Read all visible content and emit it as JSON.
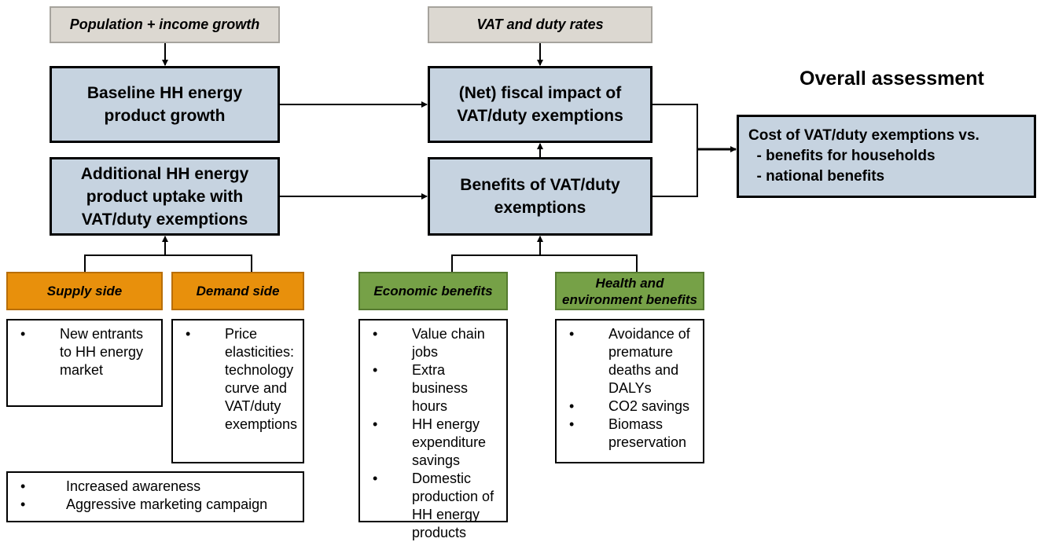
{
  "inputs": {
    "population": "Population + income growth",
    "rates": "VAT and duty rates"
  },
  "overall_heading": "Overall assessment",
  "baseline_box": {
    "lines": [
      "Baseline HH energy",
      "product growth"
    ]
  },
  "fiscal_box": {
    "lines": [
      "(Net) fiscal impact of",
      "VAT/duty exemptions"
    ]
  },
  "additional_box": {
    "lines": [
      "Additional HH energy",
      "product uptake with",
      "VAT/duty exemptions"
    ]
  },
  "benefits_box": {
    "lines": [
      "Benefits of VAT/duty",
      "exemptions"
    ]
  },
  "cost_box": {
    "lines": [
      "Cost of VAT/duty exemptions vs.",
      "  - benefits for households",
      "  - national benefits"
    ]
  },
  "categories": {
    "supply": "Supply side",
    "demand": "Demand side",
    "economic": "Economic benefits",
    "health": [
      "Health and",
      "environment benefits"
    ]
  },
  "lists": {
    "supply": [
      "New entrants to HH energy market"
    ],
    "demand": [
      "Price elasticities: technology curve and VAT/duty exemptions"
    ],
    "economic": [
      "Value chain jobs",
      "Extra business hours",
      "HH energy expenditure savings",
      "Domestic production of HH energy products"
    ],
    "health": [
      "Avoidance of premature deaths and DALYs",
      "CO2 savings",
      "Biomass preservation"
    ],
    "marketing": [
      "Increased awareness",
      "Aggressive marketing campaign"
    ]
  }
}
